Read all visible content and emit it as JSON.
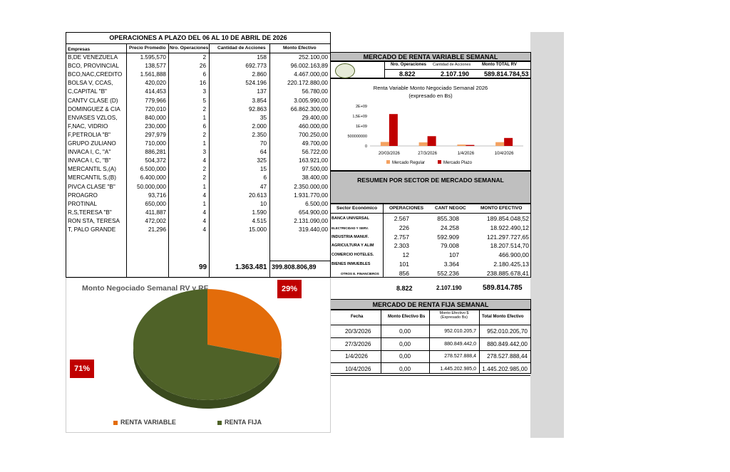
{
  "ops": {
    "title": "OPERACIONES A PLAZO DEL 06 AL 10 DE ABRIL DE 2026",
    "headers": [
      "Empresas",
      "Precio Promedio",
      "Nro. Operaciones",
      "Cantidad de Acciones",
      "Monto Efectivo"
    ],
    "rows": [
      [
        "B,DE VENEZUELA",
        "1.595,570",
        "2",
        "158",
        "252.100,00"
      ],
      [
        "BCO, PROVINCIAL",
        "138,577",
        "26",
        "692.773",
        "96.002.163,89"
      ],
      [
        "BCO,NAC,CREDITO",
        "1.561,888",
        "6",
        "2.860",
        "4.467.000,00"
      ],
      [
        "BOLSA V, CCAS,",
        "420,020",
        "16",
        "524.196",
        "220.172.880,00"
      ],
      [
        "C,CAPITAL \"B\"",
        "414,453",
        "3",
        "137",
        "56.780,00"
      ],
      [
        "CANTV CLASE (D)",
        "779,966",
        "5",
        "3.854",
        "3.005.990,00"
      ],
      [
        "DOMINGUEZ & CIA",
        "720,010",
        "2",
        "92.863",
        "66.862.300,00"
      ],
      [
        "ENVASES VZLOS,",
        "840,000",
        "1",
        "35",
        "29.400,00"
      ],
      [
        "F,NAC, VIDRIO",
        "230,000",
        "6",
        "2.000",
        "460.000,00"
      ],
      [
        "F,PETROLIA \"B\"",
        "297,979",
        "2",
        "2.350",
        "700.250,00"
      ],
      [
        "GRUPO ZULIANO",
        "710,000",
        "1",
        "70",
        "49.700,00"
      ],
      [
        "INVACA I, C, \"A\"",
        "886,281",
        "3",
        "64",
        "56.722,00"
      ],
      [
        "INVACA I, C, \"B\"",
        "504,372",
        "4",
        "325",
        "163.921,00"
      ],
      [
        "MERCANTIL S,(A)",
        "6.500,000",
        "2",
        "15",
        "97.500,00"
      ],
      [
        "MERCANTIL S,(B)",
        "6.400,000",
        "2",
        "6",
        "38.400,00"
      ],
      [
        "PIVCA CLASE \"B\"",
        "50.000,000",
        "1",
        "47",
        "2.350.000,00"
      ],
      [
        "PROAGRO",
        "93,716",
        "4",
        "20.613",
        "1.931.770,00"
      ],
      [
        "PROTINAL",
        "650,000",
        "1",
        "10",
        "6.500,00"
      ],
      [
        "R,S,TERESA \"B\"",
        "411,887",
        "4",
        "1.590",
        "654.900,00"
      ],
      [
        "RON STA, TERESA",
        "472,002",
        "4",
        "4.515",
        "2.131.090,00"
      ],
      [
        "T, PALO GRANDE",
        "21,296",
        "4",
        "15.000",
        "319.440,00"
      ]
    ],
    "total_ops": "99",
    "total_acciones": "1.363.481",
    "total_monto": "399.808.806,89"
  },
  "rv": {
    "title": "MERCADO DE RENTA VARIABLE SEMANAL",
    "headers": [
      "Nro. Operaciones",
      "Cantidad de Acciones",
      "Monto TOTAL RV"
    ],
    "values": [
      "8.822",
      "2.107.190",
      "589.814.784,53"
    ]
  },
  "resumen": {
    "title": "RESUMEN POR SECTOR DE MERCADO SEMANAL",
    "headers": [
      "Sector Económico",
      "OPERACIONES",
      "CANT NEGOC",
      "MONTO EFECTIVO"
    ],
    "rows": [
      [
        "BANCA UNIVERSAL",
        "2.567",
        "855.308",
        "189.854.048,52"
      ],
      [
        "ELECTRICIDAD Y SERV.",
        "226",
        "24.258",
        "18.922.490,12"
      ],
      [
        "INDUSTRIA MANUF.",
        "2.757",
        "592.909",
        "121.297.727,65"
      ],
      [
        "AGRICULTURA Y ALIM",
        "2.303",
        "79.008",
        "18.207.514,70"
      ],
      [
        "COMERCIO HOTELES.",
        "12",
        "107",
        "466.900,00"
      ],
      [
        "BIENES INMUEBLES",
        "101",
        "3.364",
        "2.180.425,13"
      ],
      [
        "OTROS E. FINANCIEROS",
        "856",
        "552.236",
        "238.885.678,41"
      ]
    ],
    "totals": [
      "8.822",
      "2.107.190",
      "589.814.785"
    ]
  },
  "rf": {
    "title": "MERCADO DE RENTA FIJA SEMANAL",
    "headers": [
      "Fecha",
      "Monto Efectivo  Bs",
      "Monto Efectivo $ (Expresado  Bs)",
      "Total Monto Efectivo"
    ],
    "rows": [
      [
        "20/3/2026",
        "0,00",
        "952.010.205,7",
        "952.010.205,70"
      ],
      [
        "27/3/2026",
        "0,00",
        "880.849.442,0",
        "880.849.442,00"
      ],
      [
        "1/4/2026",
        "0,00",
        "278.527.888,4",
        "278.527.888,44"
      ],
      [
        "10/4/2026",
        "0,00",
        "1.445.202.985,0",
        "1.445.202.985,00"
      ]
    ]
  },
  "pie": {
    "title": "Monto Negociado Semanal RV y RF",
    "pct_rv": "29%",
    "pct_rf": "71%",
    "legend_rv": "RENTA VARIABLE",
    "legend_rf": "RENTA FIJA"
  },
  "colors": {
    "regular": "#f4a261",
    "plazo": "#c00000",
    "rv": "#e36c0a",
    "rf": "#4f6228",
    "box": "#c00000"
  },
  "chart_data": [
    {
      "type": "bar",
      "title": "Renta Variable Monto  Negociado Semanal  2026",
      "subtitle": "(expresado en Bs)",
      "categories": [
        "20/03/2026",
        "27/3/2026",
        "1/4/2026",
        "10/4/2026"
      ],
      "series": [
        {
          "name": "Mercado Regular",
          "values": [
            200000000,
            180000000,
            70000000,
            190000000
          ]
        },
        {
          "name": "Mercado Plazo",
          "values": [
            1600000000,
            490000000,
            50000000,
            400000000
          ]
        }
      ],
      "ytick_labels": [
        "0",
        "500000000",
        "1E+09",
        "1,5E+09",
        "2E+09"
      ],
      "ylim": [
        0,
        2000000000
      ],
      "legend": "bottom"
    },
    {
      "type": "pie",
      "title": "Monto Negociado Semanal RV y RF",
      "labels": [
        "RENTA VARIABLE",
        "RENTA FIJA"
      ],
      "values": [
        29,
        71
      ]
    }
  ]
}
